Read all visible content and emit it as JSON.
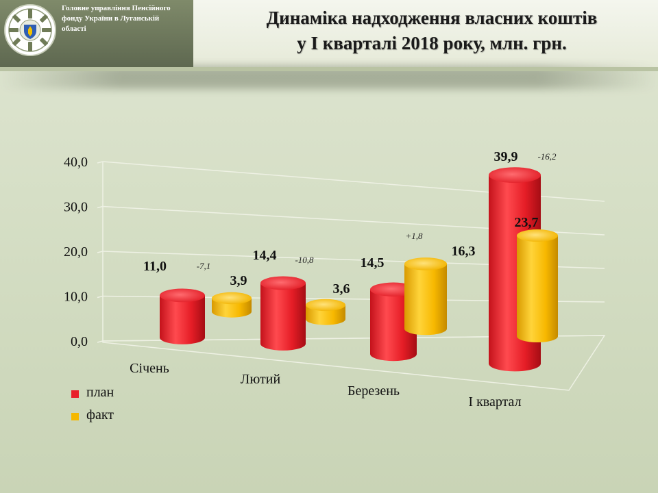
{
  "header": {
    "org_name": "Головне управління  Пенсійного\nфонду України  в Луганській\nобласті",
    "title": "Динаміка надходження власних коштів\nу І кварталі 2018 року, млн. грн.",
    "logo_icon": "pension-fund-emblem-icon"
  },
  "colors": {
    "plan": "#e8202a",
    "fact": "#f5b800"
  },
  "chart_data": {
    "type": "bar",
    "categories": [
      "Січень",
      "Лютий",
      "Березень",
      "І квартал"
    ],
    "series": [
      {
        "name": "план",
        "values": [
          11.0,
          14.4,
          14.5,
          39.9
        ],
        "labels": [
          "11,0",
          "14,4",
          "14,5",
          "39,9"
        ]
      },
      {
        "name": "факт",
        "values": [
          3.9,
          3.6,
          16.3,
          23.7
        ],
        "labels": [
          "3,9",
          "3,6",
          "16,3",
          "23,7"
        ]
      }
    ],
    "differences": [
      "-7,1",
      "-10,8",
      "+1,8",
      "-16,2"
    ],
    "y_ticks": [
      "0,0",
      "10,0",
      "20,0",
      "30,0",
      "40,0"
    ],
    "ylim": [
      0,
      40
    ],
    "grid": true,
    "legend_position": "bottom-left"
  },
  "legend": {
    "items": [
      {
        "label": "план"
      },
      {
        "label": "факт"
      }
    ]
  }
}
